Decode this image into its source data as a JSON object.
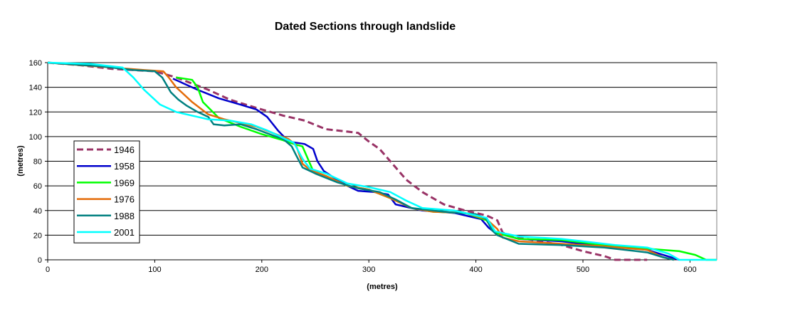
{
  "chart_data": {
    "type": "line",
    "title": "Dated Sections through landslide",
    "xlabel": "(metres)",
    "ylabel": "(metres)",
    "xlim": [
      0,
      625
    ],
    "ylim": [
      0,
      160
    ],
    "xticks": [
      "0",
      "100",
      "200",
      "300",
      "400",
      "500",
      "600"
    ],
    "yticks": [
      "0",
      "20",
      "40",
      "60",
      "80",
      "100",
      "120",
      "140",
      "160"
    ],
    "grid": "horizontal",
    "legend_position": "left",
    "colors": {
      "plot_background": "#ffffff",
      "grid": "#000000"
    },
    "series": [
      {
        "name": "1946",
        "color": "#993366",
        "dashed": true,
        "points": [
          [
            0,
            160
          ],
          [
            30,
            158
          ],
          [
            60,
            155
          ],
          [
            100,
            153
          ],
          [
            120,
            148
          ],
          [
            150,
            138
          ],
          [
            170,
            130
          ],
          [
            185,
            126
          ],
          [
            200,
            122
          ],
          [
            220,
            117
          ],
          [
            240,
            113
          ],
          [
            260,
            106
          ],
          [
            280,
            104
          ],
          [
            290,
            103
          ],
          [
            300,
            96
          ],
          [
            310,
            90
          ],
          [
            320,
            80
          ],
          [
            335,
            65
          ],
          [
            350,
            55
          ],
          [
            370,
            45
          ],
          [
            390,
            40
          ],
          [
            410,
            36
          ],
          [
            420,
            32
          ],
          [
            425,
            22
          ],
          [
            440,
            18
          ],
          [
            460,
            15
          ],
          [
            480,
            12
          ],
          [
            500,
            7
          ],
          [
            520,
            3
          ],
          [
            530,
            0
          ],
          [
            560,
            0
          ]
        ]
      },
      {
        "name": "1958",
        "color": "#0000cc",
        "dashed": false,
        "points": [
          [
            117,
            147
          ],
          [
            140,
            138
          ],
          [
            160,
            131
          ],
          [
            180,
            126
          ],
          [
            195,
            122
          ],
          [
            205,
            116
          ],
          [
            215,
            105
          ],
          [
            225,
            96
          ],
          [
            240,
            94
          ],
          [
            248,
            90
          ],
          [
            252,
            80
          ],
          [
            258,
            72
          ],
          [
            265,
            68
          ],
          [
            280,
            60
          ],
          [
            290,
            56
          ],
          [
            305,
            55
          ],
          [
            318,
            53
          ],
          [
            325,
            45
          ],
          [
            335,
            43
          ],
          [
            350,
            40
          ],
          [
            380,
            38
          ],
          [
            405,
            33
          ],
          [
            412,
            26
          ],
          [
            418,
            22
          ],
          [
            440,
            17
          ],
          [
            480,
            15
          ],
          [
            500,
            13
          ],
          [
            540,
            10
          ],
          [
            560,
            8
          ],
          [
            575,
            4
          ],
          [
            590,
            0
          ]
        ]
      },
      {
        "name": "1969",
        "color": "#00ff00",
        "dashed": false,
        "points": [
          [
            120,
            148
          ],
          [
            135,
            146
          ],
          [
            140,
            140
          ],
          [
            145,
            128
          ],
          [
            160,
            115
          ],
          [
            180,
            108
          ],
          [
            200,
            102
          ],
          [
            220,
            97
          ],
          [
            230,
            94
          ],
          [
            238,
            92
          ],
          [
            243,
            82
          ],
          [
            248,
            72
          ],
          [
            260,
            68
          ],
          [
            280,
            60
          ],
          [
            300,
            57
          ],
          [
            320,
            50
          ],
          [
            340,
            42
          ],
          [
            360,
            39
          ],
          [
            390,
            38
          ],
          [
            410,
            32
          ],
          [
            418,
            22
          ],
          [
            440,
            17
          ],
          [
            480,
            16
          ],
          [
            520,
            12
          ],
          [
            560,
            9
          ],
          [
            590,
            7
          ],
          [
            605,
            4
          ],
          [
            615,
            0
          ],
          [
            625,
            0
          ]
        ]
      },
      {
        "name": "1976",
        "color": "#e46c0a",
        "dashed": false,
        "points": [
          [
            0,
            160
          ],
          [
            60,
            156
          ],
          [
            90,
            154
          ],
          [
            108,
            153
          ],
          [
            113,
            148
          ],
          [
            120,
            140
          ],
          [
            135,
            128
          ],
          [
            150,
            118
          ],
          [
            165,
            114
          ],
          [
            180,
            111
          ],
          [
            195,
            108
          ],
          [
            210,
            103
          ],
          [
            225,
            98
          ],
          [
            232,
            93
          ],
          [
            238,
            78
          ],
          [
            245,
            73
          ],
          [
            260,
            68
          ],
          [
            280,
            60
          ],
          [
            300,
            57
          ],
          [
            320,
            50
          ],
          [
            340,
            42
          ],
          [
            360,
            39
          ],
          [
            390,
            38
          ],
          [
            410,
            33
          ],
          [
            420,
            25
          ],
          [
            425,
            18
          ],
          [
            440,
            15
          ],
          [
            480,
            13
          ],
          [
            520,
            11
          ],
          [
            560,
            8
          ],
          [
            575,
            2
          ],
          [
            585,
            0
          ]
        ]
      },
      {
        "name": "1988",
        "color": "#008080",
        "dashed": false,
        "points": [
          [
            0,
            160
          ],
          [
            50,
            157
          ],
          [
            80,
            154
          ],
          [
            100,
            153
          ],
          [
            107,
            148
          ],
          [
            115,
            136
          ],
          [
            122,
            130
          ],
          [
            130,
            125
          ],
          [
            140,
            120
          ],
          [
            150,
            116
          ],
          [
            155,
            110
          ],
          [
            165,
            109
          ],
          [
            180,
            110
          ],
          [
            195,
            106
          ],
          [
            210,
            101
          ],
          [
            220,
            98
          ],
          [
            228,
            92
          ],
          [
            232,
            85
          ],
          [
            238,
            75
          ],
          [
            250,
            70
          ],
          [
            270,
            63
          ],
          [
            290,
            58
          ],
          [
            310,
            55
          ],
          [
            325,
            49
          ],
          [
            340,
            42
          ],
          [
            370,
            39
          ],
          [
            400,
            37
          ],
          [
            410,
            33
          ],
          [
            415,
            24
          ],
          [
            420,
            20
          ],
          [
            440,
            13
          ],
          [
            480,
            12
          ],
          [
            520,
            10
          ],
          [
            560,
            6
          ],
          [
            575,
            2
          ],
          [
            585,
            0
          ]
        ]
      },
      {
        "name": "2001",
        "color": "#00ffff",
        "dashed": false,
        "points": [
          [
            0,
            160
          ],
          [
            40,
            159
          ],
          [
            70,
            156
          ],
          [
            80,
            148
          ],
          [
            90,
            138
          ],
          [
            105,
            126
          ],
          [
            120,
            120
          ],
          [
            140,
            116
          ],
          [
            150,
            114
          ],
          [
            170,
            113
          ],
          [
            190,
            110
          ],
          [
            205,
            105
          ],
          [
            215,
            101
          ],
          [
            222,
            98
          ],
          [
            230,
            95
          ],
          [
            238,
            82
          ],
          [
            245,
            74
          ],
          [
            260,
            70
          ],
          [
            280,
            62
          ],
          [
            300,
            59
          ],
          [
            320,
            55
          ],
          [
            335,
            48
          ],
          [
            350,
            42
          ],
          [
            380,
            40
          ],
          [
            410,
            34
          ],
          [
            418,
            23
          ],
          [
            440,
            19
          ],
          [
            480,
            17
          ],
          [
            500,
            15
          ],
          [
            530,
            12
          ],
          [
            560,
            10
          ],
          [
            580,
            5
          ],
          [
            590,
            0
          ],
          [
            625,
            0
          ]
        ]
      }
    ]
  }
}
